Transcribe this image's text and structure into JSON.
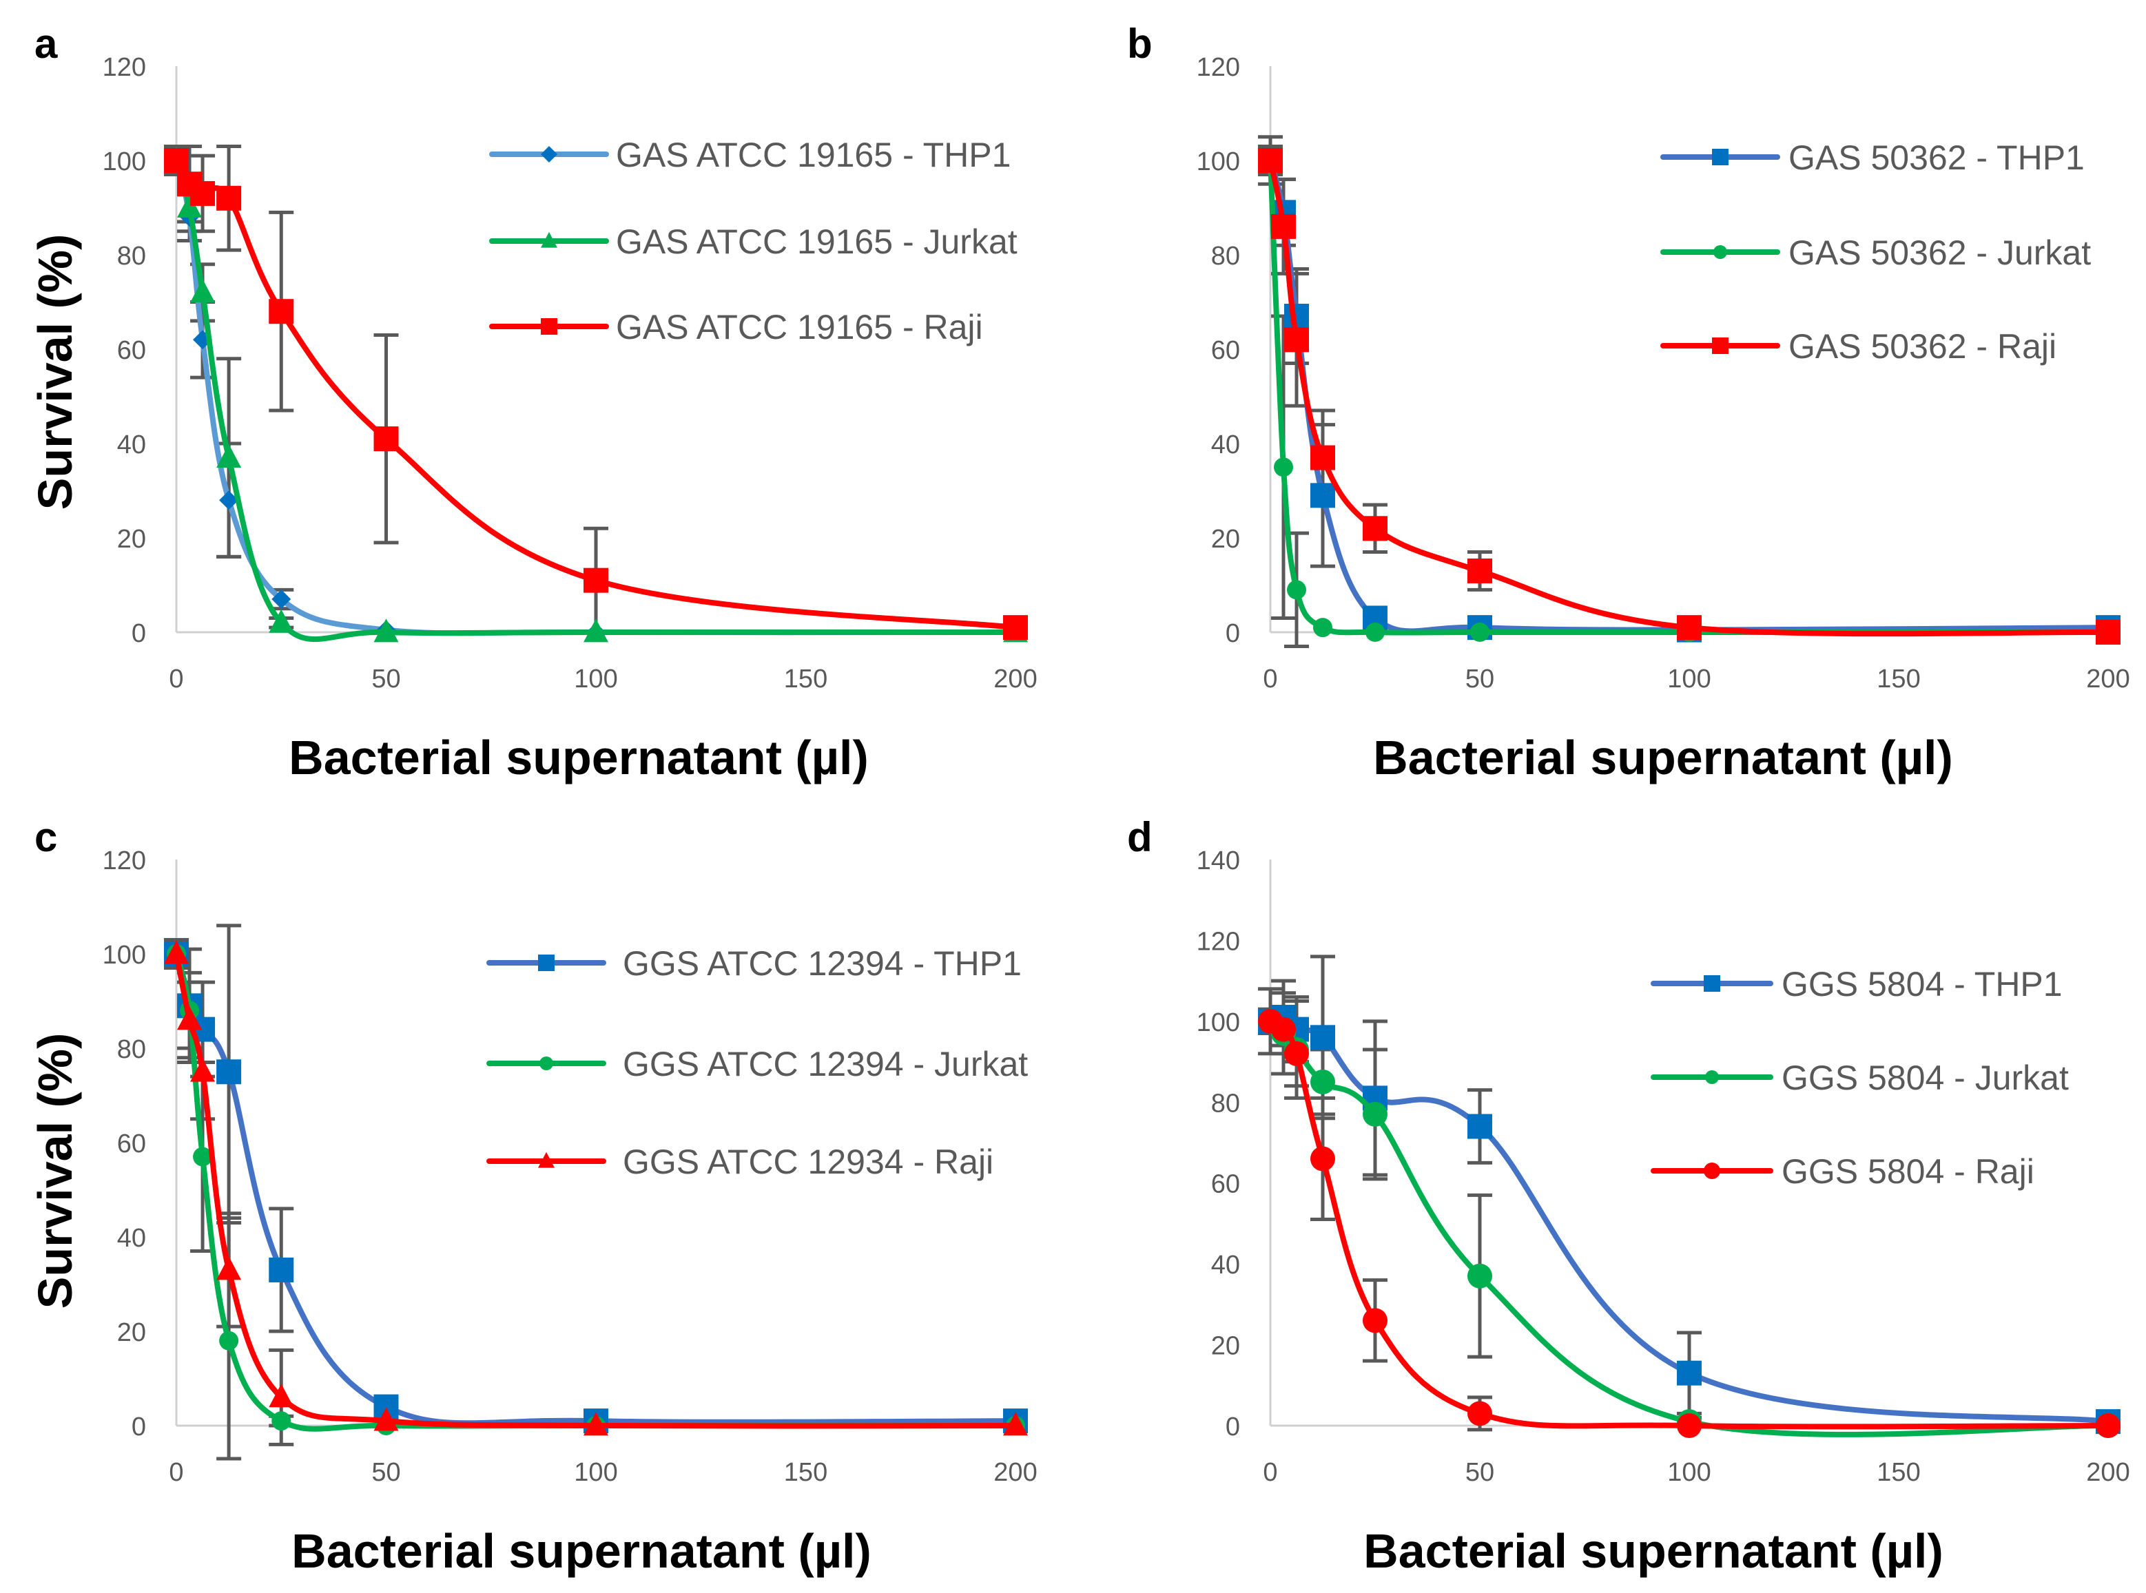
{
  "chart_data": [
    {
      "type": "line",
      "panel_label": "a",
      "xlabel": "Bacterial supernatant (µl)",
      "ylabel": "Survival (%)",
      "xlim": [
        0,
        200
      ],
      "ylim": [
        0,
        120
      ],
      "xticks": [
        "0",
        "50",
        "100",
        "150",
        "200"
      ],
      "yticks": [
        "0",
        "20",
        "40",
        "60",
        "80",
        "100",
        "120"
      ],
      "legend_position": "top-right",
      "x": [
        0,
        3.125,
        6.25,
        12.5,
        25,
        50,
        100,
        200
      ],
      "series": [
        {
          "name": "GAS ATCC 19165 - THP1",
          "color": "#5B9BD5",
          "marker_color": "#0070C0",
          "marker": "diamond",
          "values": [
            100,
            88,
            62,
            28,
            7,
            0.5,
            0,
            0
          ],
          "errors": [
            3,
            5,
            8,
            12,
            2,
            0,
            0,
            0
          ]
        },
        {
          "name": "GAS ATCC 19165 - Jurkat",
          "color": "#00B050",
          "marker_color": "#00B050",
          "marker": "triangle",
          "values": [
            100,
            90,
            72,
            37,
            2,
            0,
            0,
            0
          ],
          "errors": [
            2,
            5,
            6,
            21,
            1,
            0,
            0,
            0
          ]
        },
        {
          "name": "GAS ATCC 19165 - Raji",
          "color": "#FF0000",
          "marker_color": "#FF0000",
          "marker": "square",
          "values": [
            100,
            95,
            93,
            92,
            68,
            41,
            11,
            1
          ],
          "errors": [
            3,
            8,
            8,
            11,
            21,
            22,
            11,
            0
          ]
        }
      ]
    },
    {
      "type": "line",
      "panel_label": "b",
      "xlabel": "Bacterial supernatant (µl)",
      "ylabel": "",
      "xlim": [
        0,
        200
      ],
      "ylim": [
        0,
        120
      ],
      "xticks": [
        "0",
        "50",
        "100",
        "150",
        "200"
      ],
      "yticks": [
        "0",
        "20",
        "40",
        "60",
        "80",
        "100",
        "120"
      ],
      "legend_position": "top-right",
      "x": [
        0,
        3.125,
        6.25,
        12.5,
        25,
        50,
        100,
        200
      ],
      "series": [
        {
          "name": "GAS 50362 - THP1",
          "color": "#4472C4",
          "marker_color": "#0070C0",
          "marker": "square",
          "values": [
            100,
            89,
            67,
            29,
            3,
            1,
            0.5,
            1
          ],
          "errors": [
            3,
            7,
            10,
            15,
            1,
            1,
            0,
            0
          ]
        },
        {
          "name": "GAS 50362 - Jurkat",
          "color": "#00B050",
          "marker_color": "#00B050",
          "marker": "circle",
          "values": [
            100,
            35,
            9,
            1,
            0,
            0,
            0,
            0
          ],
          "errors": [
            2,
            32,
            12,
            0,
            0,
            0,
            0,
            0
          ]
        },
        {
          "name": "GAS 50362 - Raji",
          "color": "#FF0000",
          "marker_color": "#FF0000",
          "marker": "square",
          "values": [
            100,
            86,
            62,
            37,
            22,
            13,
            1,
            0
          ],
          "errors": [
            5,
            10,
            14,
            10,
            5,
            4,
            1,
            0
          ]
        }
      ]
    },
    {
      "type": "line",
      "panel_label": "c",
      "xlabel": "Bacterial supernatant (µl)",
      "ylabel": "Survival (%)",
      "xlim": [
        0,
        200
      ],
      "ylim": [
        0,
        120
      ],
      "xticks": [
        "0",
        "50",
        "100",
        "150",
        "200"
      ],
      "yticks": [
        "0",
        "20",
        "40",
        "60",
        "80",
        "100",
        "120"
      ],
      "legend_position": "top-right",
      "x": [
        0,
        3.125,
        6.25,
        12.5,
        25,
        50,
        100,
        200
      ],
      "series": [
        {
          "name": "GGS ATCC 12394 - THP1",
          "color": "#4472C4",
          "marker_color": "#0070C0",
          "marker": "square",
          "values": [
            100,
            89,
            84,
            75,
            33,
            4,
            1,
            1
          ],
          "errors": [
            3,
            12,
            10,
            31,
            13,
            1,
            0,
            0
          ]
        },
        {
          "name": "GGS ATCC 12394 - Jurkat",
          "color": "#00B050",
          "marker_color": "#00B050",
          "marker": "circle",
          "values": [
            100,
            88,
            57,
            18,
            1,
            0,
            0,
            0
          ],
          "errors": [
            2,
            8,
            20,
            25,
            1,
            0,
            0,
            0
          ]
        },
        {
          "name": "GGS ATCC 12934 - Raji",
          "color": "#FF0000",
          "marker_color": "#FF0000",
          "marker": "triangle",
          "values": [
            100,
            86,
            75,
            33,
            6,
            1,
            0,
            0
          ],
          "errors": [
            2,
            8,
            10,
            12,
            10,
            0,
            0,
            0
          ]
        }
      ]
    },
    {
      "type": "line",
      "panel_label": "d",
      "xlabel": "Bacterial supernatant (µl)",
      "ylabel": "",
      "xlim": [
        0,
        200
      ],
      "ylim": [
        0,
        140
      ],
      "xticks": [
        "0",
        "50",
        "100",
        "150",
        "200"
      ],
      "yticks": [
        "0",
        "20",
        "40",
        "60",
        "80",
        "100",
        "120",
        "140"
      ],
      "legend_position": "top-right",
      "x": [
        0,
        3.125,
        6.25,
        12.5,
        25,
        50,
        100,
        200
      ],
      "series": [
        {
          "name": "GGS 5804 - THP1",
          "color": "#4472C4",
          "marker_color": "#0070C0",
          "marker": "square",
          "values": [
            100,
            101,
            98,
            96,
            81,
            74,
            13,
            1
          ],
          "errors": [
            8,
            9,
            8,
            20,
            19,
            9,
            10,
            0
          ]
        },
        {
          "name": "GGS 5804 - Jurkat",
          "color": "#00B050",
          "marker_color": "#00B050",
          "marker": "circle",
          "values": [
            100,
            97,
            93,
            85,
            77,
            37,
            1,
            0
          ],
          "errors": [
            3,
            10,
            12,
            8,
            16,
            20,
            1,
            0
          ]
        },
        {
          "name": "GGS 5804 - Raji",
          "color": "#FF0000",
          "marker_color": "#FF0000",
          "marker": "circle",
          "values": [
            100,
            98,
            92,
            66,
            26,
            3,
            0,
            0
          ],
          "errors": [
            2,
            4,
            8,
            15,
            10,
            4,
            0,
            0
          ]
        }
      ]
    }
  ]
}
